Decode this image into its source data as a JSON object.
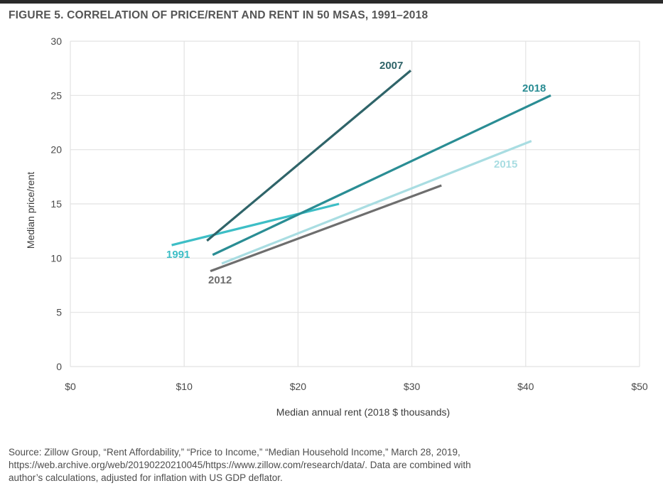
{
  "figure": {
    "title": "FIGURE 5. CORRELATION OF PRICE/RENT AND RENT IN 50 MSAS, 1991–2018",
    "source_lines": [
      "Source: Zillow Group, “Rent Affordability,” “Price to Income,” “Median Household Income,” March 28, 2019,",
      "https://web.archive.org/web/20190220210045/https://www.zillow.com/research/data/. Data are combined with",
      "author’s calculations, adjusted for inflation with US GDP deflator."
    ]
  },
  "chart_data": {
    "type": "line",
    "xlabel": "Median annual rent (2018 $ thousands)",
    "ylabel": "Median price/rent",
    "xlim": [
      0,
      50
    ],
    "ylim": [
      0,
      30
    ],
    "x_ticks": [
      0,
      10,
      20,
      30,
      40,
      50
    ],
    "x_tick_labels": [
      "$0",
      "$10",
      "$20",
      "$30",
      "$40",
      "$50"
    ],
    "y_ticks": [
      0,
      5,
      10,
      15,
      20,
      25,
      30
    ],
    "y_tick_labels": [
      "0",
      "5",
      "10",
      "15",
      "20",
      "25",
      "30"
    ],
    "grid": true,
    "legend": "none",
    "series": [
      {
        "name": "1991",
        "color": "#3dbec6",
        "x": [
          8.9,
          23.6
        ],
        "y": [
          11.2,
          15.0
        ]
      },
      {
        "name": "2007",
        "color": "#2f6469",
        "x": [
          12.0,
          29.9
        ],
        "y": [
          11.6,
          27.3
        ]
      },
      {
        "name": "2012",
        "color": "#6e6e6e",
        "x": [
          12.3,
          32.6
        ],
        "y": [
          8.8,
          16.7
        ]
      },
      {
        "name": "2015",
        "color": "#a9dde2",
        "x": [
          13.3,
          40.5
        ],
        "y": [
          9.5,
          20.8
        ]
      },
      {
        "name": "2018",
        "color": "#2a8d94",
        "x": [
          12.5,
          42.2
        ],
        "y": [
          10.3,
          25.0
        ]
      }
    ]
  }
}
